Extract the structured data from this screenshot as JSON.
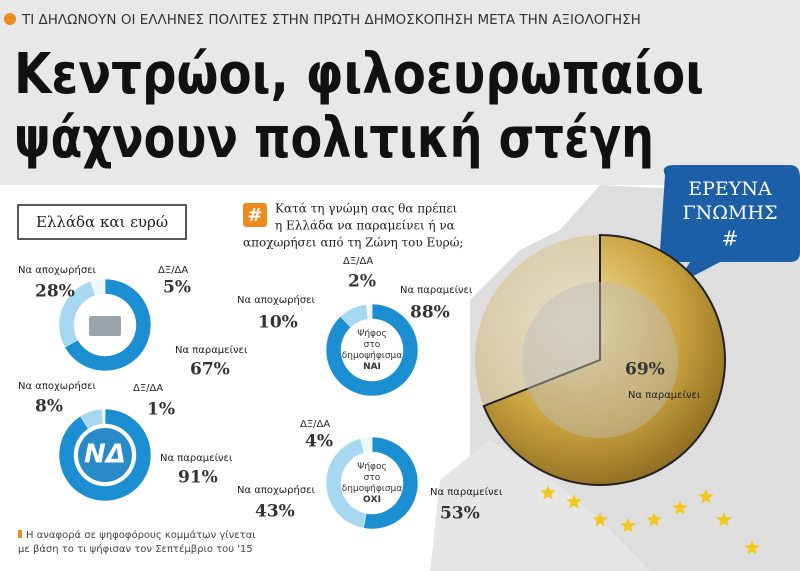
{
  "kicker": "ΤΙ ΔΗΛΩΝΟΥΝ ΟΙ ΕΛΛΗΝΕΣ ΠΟΛΙΤΕΣ ΣΤΗΝ ΠΡΩΤΗ ΔΗΜΟΣΚΟΠΗΣΗ ΜΕΤΑ ΤΗΝ ΑΞΙΟΛΟΓΗΣΗ",
  "headline": [
    "Κεντρώοι, φιλοευρωπαίοι",
    "ψάχνουν πολιτική στέγη"
  ],
  "section": "Ελλάδα και ευρώ",
  "question": [
    "Κατά τη γνώμη σας θα πρέπει",
    "η Ελλάδα να παραμείνει ή να",
    "αποχωρήσει από τη Ζώνη του Ευρώ;"
  ],
  "question_icon": "#",
  "badge": [
    "ΕΡΕΥΝΑ",
    "ΓΝΩΜΗΣ",
    "#"
  ],
  "footnote": [
    "Η αναφορά σε ψηφοφόρους κομμάτων γίνεται",
    "με βάση το τι ψήφισαν τον Σεπτέμβριο του '15"
  ],
  "chart_data": [
    {
      "type": "donut",
      "categories": [
        "Να παραμείνει",
        "Να αποχωρήσει",
        "ΔΞ/ΔΑ"
      ],
      "values": [
        67,
        28,
        5
      ],
      "value_labels": [
        "67%",
        "28%",
        "5%"
      ],
      "colors": [
        "#1b8fd2",
        "#a6d8f2",
        "#eef7fc"
      ]
    },
    {
      "type": "donut",
      "center": [
        "ΝΔ"
      ],
      "categories": [
        "Να παραμείνει",
        "Να αποχωρήσει",
        "ΔΞ/ΔΑ"
      ],
      "values": [
        91,
        8,
        1
      ],
      "value_labels": [
        "91%",
        "8%",
        "1%"
      ],
      "colors": [
        "#1b8fd2",
        "#a6d8f2",
        "#eef7fc"
      ]
    },
    {
      "type": "donut",
      "center": [
        "Ψήφος",
        "στο",
        "δημοψήφισμα",
        "ΝΑΙ"
      ],
      "categories": [
        "Να παραμείνει",
        "Να αποχωρήσει",
        "ΔΞ/ΔΑ"
      ],
      "values": [
        88,
        10,
        2
      ],
      "value_labels": [
        "88%",
        "10%",
        "2%"
      ],
      "colors": [
        "#1b8fd2",
        "#a6d8f2",
        "#eef7fc"
      ]
    },
    {
      "type": "donut",
      "center": [
        "Ψήφος",
        "στο",
        "δημοψήφισμα",
        "ΟΧΙ"
      ],
      "categories": [
        "Να παραμείνει",
        "Να αποχωρήσει",
        "ΔΞ/ΔΑ"
      ],
      "values": [
        53,
        43,
        4
      ],
      "value_labels": [
        "53%",
        "43%",
        "4%"
      ],
      "colors": [
        "#1b8fd2",
        "#a6d8f2",
        "#eef7fc"
      ]
    },
    {
      "type": "coin",
      "categories": [
        "Να παραμείνει"
      ],
      "values": [
        69
      ],
      "value_labels": [
        "69%"
      ],
      "colors": [
        "#d9b54a"
      ]
    }
  ]
}
